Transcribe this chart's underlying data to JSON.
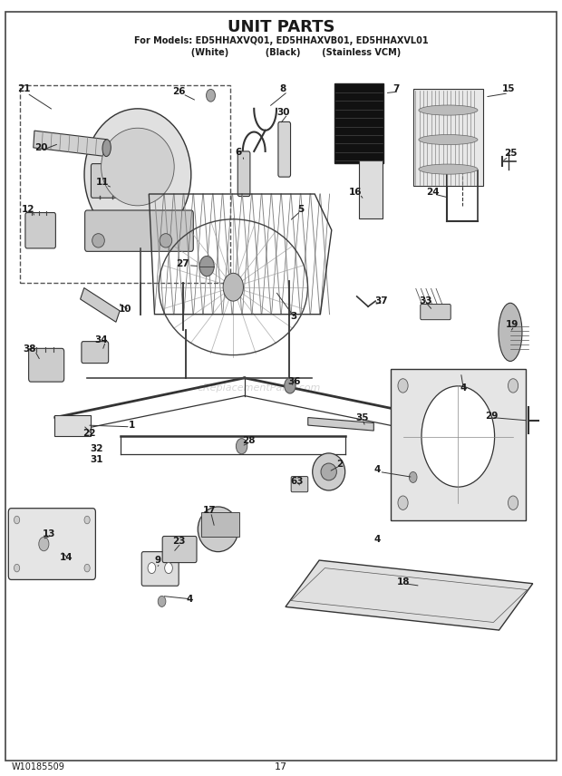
{
  "title": "UNIT PARTS",
  "subtitle_line1": "For Models: ED5HHAXVQ01, ED5HHAXVB01, ED5HHAXVL01",
  "subtitle_line2": "          (White)            (Black)       (Stainless VCM)",
  "footer_left": "W10185509",
  "footer_center": "17",
  "bg_color": "#ffffff",
  "line_color": "#1a1a1a",
  "text_color": "#1a1a1a",
  "watermark": "eReplacementParts.com"
}
